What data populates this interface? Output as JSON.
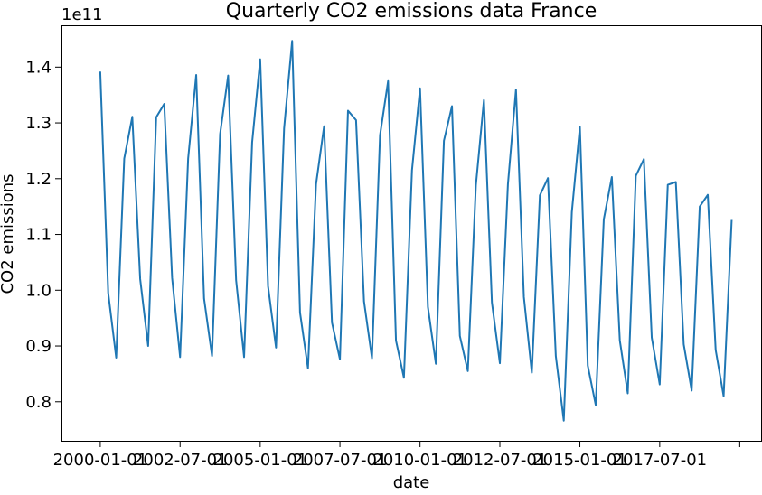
{
  "chart_data": {
    "type": "line",
    "title": "Quarterly CO2 emissions data France",
    "xlabel": "date",
    "ylabel": "CO2 emissions",
    "y_offset_label": "1e11",
    "y_multiplier": 100000000000,
    "grid": false,
    "legend": "none",
    "xlim": [
      "1998-10-15",
      "2020-09-01"
    ],
    "ylim": [
      0.73,
      1.475
    ],
    "x_ticks": [
      {
        "date": "2000-01-01",
        "label": "2000-01-01"
      },
      {
        "date": "2002-07-01",
        "label": "2002-07-01"
      },
      {
        "date": "2005-01-01",
        "label": "2005-01-01"
      },
      {
        "date": "2007-07-01",
        "label": "2007-07-01"
      },
      {
        "date": "2010-01-01",
        "label": "2010-01-01"
      },
      {
        "date": "2012-07-01",
        "label": "2012-07-01"
      },
      {
        "date": "2015-01-01",
        "label": "2015-01-01"
      },
      {
        "date": "2017-07-01",
        "label": "2017-07-01"
      },
      {
        "date": "2020-01-01",
        "label": ""
      }
    ],
    "y_ticks": [
      {
        "value": 0.8,
        "label": "0.8"
      },
      {
        "value": 0.9,
        "label": "0.9"
      },
      {
        "value": 1.0,
        "label": "1.0"
      },
      {
        "value": 1.1,
        "label": "1.1"
      },
      {
        "value": 1.2,
        "label": "1.2"
      },
      {
        "value": 1.3,
        "label": "1.3"
      },
      {
        "value": 1.4,
        "label": "1.4"
      }
    ],
    "series": [
      {
        "color": "#1f77b4",
        "points": [
          [
            "2000-01-01",
            1.392
          ],
          [
            "2000-04-01",
            0.995
          ],
          [
            "2000-07-01",
            0.879
          ],
          [
            "2000-10-01",
            1.236
          ],
          [
            "2001-01-01",
            1.311
          ],
          [
            "2001-04-01",
            1.02
          ],
          [
            "2001-07-01",
            0.9
          ],
          [
            "2001-10-01",
            1.31
          ],
          [
            "2002-01-01",
            1.334
          ],
          [
            "2002-04-01",
            1.022
          ],
          [
            "2002-07-01",
            0.88
          ],
          [
            "2002-10-01",
            1.236
          ],
          [
            "2003-01-01",
            1.386
          ],
          [
            "2003-04-01",
            0.985
          ],
          [
            "2003-07-01",
            0.882
          ],
          [
            "2003-10-01",
            1.28
          ],
          [
            "2004-01-01",
            1.385
          ],
          [
            "2004-04-01",
            1.018
          ],
          [
            "2004-07-01",
            0.88
          ],
          [
            "2004-10-01",
            1.265
          ],
          [
            "2005-01-01",
            1.414
          ],
          [
            "2005-04-01",
            1.007
          ],
          [
            "2005-07-01",
            0.897
          ],
          [
            "2005-10-01",
            1.29
          ],
          [
            "2006-01-01",
            1.447
          ],
          [
            "2006-04-01",
            0.96
          ],
          [
            "2006-07-01",
            0.86
          ],
          [
            "2006-10-01",
            1.19
          ],
          [
            "2007-01-01",
            1.294
          ],
          [
            "2007-04-01",
            0.942
          ],
          [
            "2007-07-01",
            0.876
          ],
          [
            "2007-10-01",
            1.322
          ],
          [
            "2008-01-01",
            1.305
          ],
          [
            "2008-04-01",
            0.98
          ],
          [
            "2008-07-01",
            0.878
          ],
          [
            "2008-10-01",
            1.278
          ],
          [
            "2009-01-01",
            1.375
          ],
          [
            "2009-04-01",
            0.91
          ],
          [
            "2009-07-01",
            0.843
          ],
          [
            "2009-10-01",
            1.215
          ],
          [
            "2010-01-01",
            1.362
          ],
          [
            "2010-04-01",
            0.97
          ],
          [
            "2010-07-01",
            0.868
          ],
          [
            "2010-10-01",
            1.268
          ],
          [
            "2011-01-01",
            1.33
          ],
          [
            "2011-04-01",
            0.918
          ],
          [
            "2011-07-01",
            0.855
          ],
          [
            "2011-10-01",
            1.188
          ],
          [
            "2012-01-01",
            1.341
          ],
          [
            "2012-04-01",
            0.978
          ],
          [
            "2012-07-01",
            0.869
          ],
          [
            "2012-10-01",
            1.19
          ],
          [
            "2013-01-01",
            1.36
          ],
          [
            "2013-04-01",
            0.988
          ],
          [
            "2013-07-01",
            0.852
          ],
          [
            "2013-10-01",
            1.17
          ],
          [
            "2014-01-01",
            1.201
          ],
          [
            "2014-04-01",
            0.882
          ],
          [
            "2014-07-01",
            0.766
          ],
          [
            "2014-10-01",
            1.14
          ],
          [
            "2015-01-01",
            1.293
          ],
          [
            "2015-04-01",
            0.865
          ],
          [
            "2015-07-01",
            0.794
          ],
          [
            "2015-10-01",
            1.127
          ],
          [
            "2016-01-01",
            1.203
          ],
          [
            "2016-04-01",
            0.91
          ],
          [
            "2016-07-01",
            0.815
          ],
          [
            "2016-10-01",
            1.205
          ],
          [
            "2017-01-01",
            1.235
          ],
          [
            "2017-04-01",
            0.915
          ],
          [
            "2017-07-01",
            0.831
          ],
          [
            "2017-10-01",
            1.189
          ],
          [
            "2018-01-01",
            1.194
          ],
          [
            "2018-04-01",
            0.903
          ],
          [
            "2018-07-01",
            0.82
          ],
          [
            "2018-10-01",
            1.15
          ],
          [
            "2019-01-01",
            1.171
          ],
          [
            "2019-04-01",
            0.893
          ],
          [
            "2019-07-01",
            0.81
          ],
          [
            "2019-10-01",
            1.126
          ]
        ]
      }
    ]
  }
}
